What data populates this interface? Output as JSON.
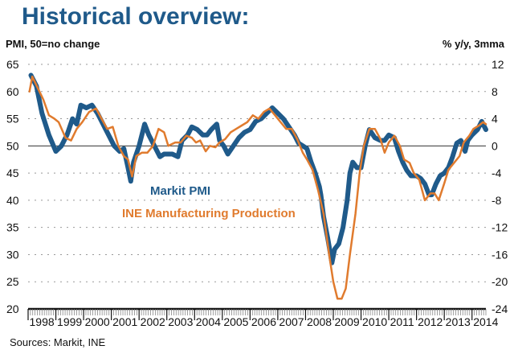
{
  "page": {
    "title": "Historical overview:",
    "source": "Sources: Markit, INE"
  },
  "chart_data": {
    "type": "line",
    "title": "Historical overview:",
    "ylabel_left": "PMI, 50=no change",
    "ylabel_right": "% y/y, 3mma",
    "xlabel": "",
    "ylim_left": [
      20,
      65
    ],
    "ylim_right": [
      -24,
      12
    ],
    "yticks_left": [
      "65",
      "60",
      "55",
      "50",
      "45",
      "40",
      "35",
      "30",
      "25",
      "20"
    ],
    "yticks_right": [
      "12",
      "8",
      "4",
      "0",
      "-4",
      "-8",
      "-12",
      "-16",
      "-20",
      "-24"
    ],
    "xlim": [
      1998.0,
      2014.5
    ],
    "xticks": [
      "1998",
      "1999",
      "2000",
      "2001",
      "2002",
      "2003",
      "2004",
      "2005",
      "2006",
      "2007",
      "2008",
      "2009",
      "2010",
      "2011",
      "2012",
      "2013",
      "2014"
    ],
    "grid": "horizontal dotted",
    "reference_line": 50,
    "colors": {
      "pmi": "#1f5a8a",
      "ine": "#e07b2e"
    },
    "legend": [
      "Markit PMI",
      "INE Manufacturing Production"
    ],
    "series": [
      {
        "name": "Markit PMI",
        "axis": "left",
        "x": [
          1998.1,
          1998.3,
          1998.5,
          1998.75,
          1999.0,
          1999.2,
          1999.4,
          1999.6,
          1999.75,
          1999.9,
          2000.1,
          2000.3,
          2000.5,
          2000.7,
          2000.9,
          2001.1,
          2001.3,
          2001.45,
          2001.6,
          2001.7,
          2001.8,
          2002.0,
          2002.2,
          2002.35,
          2002.55,
          2002.75,
          2002.9,
          2003.2,
          2003.4,
          2003.55,
          2003.75,
          2003.9,
          2004.1,
          2004.3,
          2004.45,
          2004.6,
          2004.8,
          2004.9,
          2005.05,
          2005.2,
          2005.4,
          2005.6,
          2005.8,
          2006.0,
          2006.2,
          2006.4,
          2006.6,
          2006.8,
          2007.0,
          2007.2,
          2007.4,
          2007.6,
          2007.75,
          2007.9,
          2008.05,
          2008.2,
          2008.35,
          2008.5,
          2008.55,
          2008.65,
          2008.8,
          2008.95,
          2009.05,
          2009.2,
          2009.35,
          2009.5,
          2009.6,
          2009.7,
          2009.85,
          2010.0,
          2010.15,
          2010.3,
          2010.5,
          2010.7,
          2010.85,
          2011.0,
          2011.2,
          2011.35,
          2011.5,
          2011.65,
          2011.8,
          2012.0,
          2012.15,
          2012.3,
          2012.45,
          2012.55,
          2012.7,
          2012.85,
          2013.0,
          2013.15,
          2013.3,
          2013.45,
          2013.6,
          2013.75,
          2013.85,
          2014.0,
          2014.2,
          2014.35,
          2014.5
        ],
        "values": [
          63,
          61,
          56,
          52,
          49,
          50,
          52,
          55,
          54,
          57.5,
          57,
          57.5,
          56,
          54,
          52,
          50,
          49,
          49.5,
          46,
          43.5,
          47,
          50,
          54,
          52,
          50,
          48,
          48.5,
          48.5,
          48,
          51,
          52,
          53.5,
          53,
          52,
          52,
          53,
          54,
          51,
          50,
          48.5,
          50,
          51.5,
          52.5,
          53,
          54.5,
          55,
          56,
          57,
          56,
          55,
          53.5,
          52,
          50.5,
          50,
          49.5,
          47,
          45,
          42.5,
          41,
          37,
          33,
          28.5,
          31,
          32,
          35,
          40,
          45,
          47,
          46,
          46,
          50,
          53,
          51.5,
          51,
          51,
          52,
          51.5,
          49,
          47,
          45.5,
          44.5,
          44.5,
          44,
          43,
          41,
          41,
          43,
          44.5,
          45,
          46,
          48,
          50.5,
          51,
          49,
          51,
          52,
          53,
          54.5,
          53
        ]
      },
      {
        "name": "INE Manufacturing Production",
        "axis": "right",
        "x": [
          1998.05,
          1998.15,
          1998.35,
          1998.55,
          1998.75,
          1998.95,
          1999.1,
          1999.35,
          1999.55,
          1999.75,
          1999.95,
          2000.2,
          2000.45,
          2000.65,
          2000.85,
          2001.05,
          2001.25,
          2001.45,
          2001.6,
          2001.75,
          2001.9,
          2002.1,
          2002.3,
          2002.5,
          2002.7,
          2002.9,
          2003.05,
          2003.3,
          2003.5,
          2003.7,
          2003.9,
          2004.05,
          2004.2,
          2004.4,
          2004.55,
          2004.75,
          2004.9,
          2005.1,
          2005.3,
          2005.5,
          2005.7,
          2005.9,
          2006.1,
          2006.3,
          2006.5,
          2006.7,
          2006.9,
          2007.1,
          2007.3,
          2007.5,
          2007.7,
          2007.9,
          2008.05,
          2008.25,
          2008.45,
          2008.65,
          2008.85,
          2009.0,
          2009.15,
          2009.3,
          2009.45,
          2009.6,
          2009.8,
          2009.95,
          2010.1,
          2010.3,
          2010.5,
          2010.7,
          2010.85,
          2011.0,
          2011.2,
          2011.4,
          2011.55,
          2011.75,
          2011.9,
          2012.1,
          2012.3,
          2012.5,
          2012.65,
          2012.8,
          2013.0,
          2013.15,
          2013.35,
          2013.55,
          2013.7,
          2013.9,
          2014.05,
          2014.25,
          2014.4,
          2014.5
        ],
        "values": [
          8,
          10.2,
          8.5,
          6.8,
          4.5,
          4,
          3.5,
          1.2,
          0.8,
          2.5,
          3.5,
          5,
          5.5,
          4,
          2.5,
          2.8,
          0,
          -1.5,
          -2,
          -4.5,
          -1.5,
          -1,
          -1,
          0,
          2.5,
          2,
          0,
          0.5,
          0.5,
          1.5,
          1.2,
          0.5,
          0.8,
          -0.8,
          0,
          -0.2,
          0.5,
          1,
          2,
          2.5,
          3,
          3.5,
          4.5,
          4,
          5,
          5.5,
          4.5,
          3.5,
          2.5,
          2.5,
          1,
          -1,
          -2,
          -3.5,
          -6.5,
          -10,
          -16,
          -20,
          -22.5,
          -22.5,
          -21,
          -16,
          -10,
          -4,
          0,
          2.5,
          2.5,
          1,
          -1,
          0.5,
          1.5,
          0,
          -2,
          -2.5,
          -4,
          -5,
          -8,
          -7,
          -7,
          -8,
          -5.5,
          -3.5,
          -2.5,
          -1.5,
          0.5,
          1.5,
          2.5,
          3,
          3.5,
          3.2
        ]
      }
    ]
  }
}
